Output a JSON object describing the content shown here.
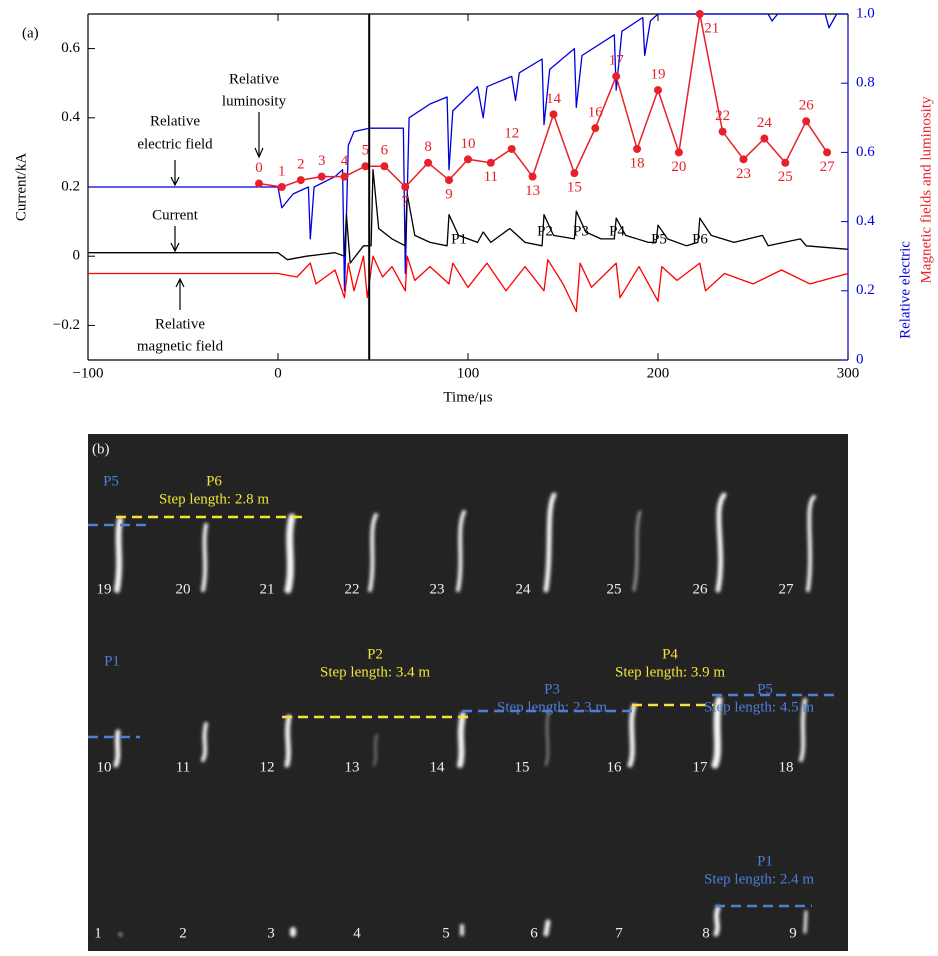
{
  "chart_data": {
    "type": "line",
    "panel_label": "(a)",
    "xlabel": "Time/μs",
    "ylabel": "Current/kA",
    "y2label": [
      "Relative electric",
      "Magnetic fields and luminosity"
    ],
    "xlim": [
      -100,
      300
    ],
    "xticks": [
      {
        "value": -100,
        "label": "−100"
      },
      0,
      100,
      200,
      300
    ],
    "ylim": [
      -0.3,
      0.7
    ],
    "yticks": [
      {
        "value": -0.2,
        "label": "−0.2"
      },
      0,
      0.2,
      0.4,
      0.6
    ],
    "y2lim": [
      0,
      1
    ],
    "y2ticks": [
      0,
      0.2,
      0.4,
      0.6,
      0.8,
      {
        "value": 1,
        "label": "1.0"
      }
    ],
    "y2color": "#0000e0",
    "vline": 48,
    "series": [
      {
        "color": "#0000e0",
        "axis": "y2",
        "x": [
          -100,
          -2,
          0,
          2,
          8,
          16,
          17,
          19,
          30,
          34,
          35,
          37,
          40,
          48,
          66,
          67,
          69,
          80,
          89,
          90,
          92,
          105,
          108,
          110,
          123,
          125,
          127,
          139,
          140,
          143,
          156,
          157,
          160,
          177,
          178,
          181,
          192,
          193,
          196,
          200,
          258,
          260,
          263,
          288,
          290,
          294,
          300
        ],
        "values": [
          0.5,
          0.5,
          0.5,
          0.44,
          0.48,
          0.5,
          0.35,
          0.5,
          0.53,
          0.55,
          0.2,
          0.62,
          0.66,
          0.67,
          0.67,
          0.25,
          0.7,
          0.74,
          0.76,
          0.55,
          0.72,
          0.79,
          0.7,
          0.79,
          0.82,
          0.75,
          0.83,
          0.87,
          0.68,
          0.84,
          0.9,
          0.73,
          0.88,
          0.94,
          0.78,
          0.95,
          0.99,
          0.88,
          0.98,
          1.0,
          1.0,
          0.98,
          1.0,
          1.0,
          0.96,
          1.0,
          1.0
        ]
      },
      {
        "color": "#000000",
        "x": [
          -100,
          -50,
          0,
          5,
          15,
          30,
          35,
          36,
          38,
          45,
          49,
          50,
          53,
          60,
          67,
          68,
          72,
          80,
          89,
          90,
          95,
          105,
          108,
          112,
          122,
          130,
          139,
          140,
          145,
          156,
          157,
          162,
          170,
          177,
          178,
          183,
          195,
          199,
          200,
          205,
          215,
          221,
          222,
          228,
          240,
          255,
          258,
          275,
          278,
          300
        ],
        "values": [
          0.01,
          0.01,
          0.01,
          -0.01,
          0.0,
          0.01,
          0.0,
          0.12,
          -0.02,
          0.03,
          0.03,
          0.25,
          0.08,
          0.05,
          0.03,
          0.18,
          0.06,
          0.04,
          0.03,
          0.12,
          0.06,
          0.04,
          0.07,
          0.04,
          0.08,
          0.04,
          0.03,
          0.12,
          0.06,
          0.05,
          0.13,
          0.07,
          0.05,
          0.05,
          0.11,
          0.06,
          0.04,
          0.04,
          0.09,
          0.05,
          0.03,
          0.04,
          0.11,
          0.06,
          0.04,
          0.06,
          0.03,
          0.05,
          0.03,
          0.02
        ]
      },
      {
        "color": "#ff0000",
        "x": [
          -100,
          -10,
          0,
          10,
          17,
          20,
          30,
          35,
          37,
          40,
          45,
          47,
          50,
          55,
          60,
          67,
          68,
          72,
          80,
          90,
          92,
          100,
          110,
          120,
          130,
          140,
          142,
          150,
          157,
          159,
          165,
          178,
          180,
          190,
          200,
          202,
          210,
          222,
          225,
          235,
          250,
          265,
          280,
          300
        ],
        "values": [
          -0.05,
          -0.05,
          -0.05,
          -0.06,
          -0.02,
          -0.08,
          -0.04,
          -0.12,
          -0.02,
          -0.1,
          0.0,
          -0.12,
          0.0,
          -0.06,
          -0.03,
          -0.1,
          0.0,
          -0.07,
          -0.03,
          -0.08,
          -0.02,
          -0.09,
          -0.02,
          -0.1,
          -0.03,
          -0.1,
          -0.01,
          -0.08,
          -0.16,
          -0.02,
          -0.09,
          -0.02,
          -0.12,
          -0.03,
          -0.13,
          -0.03,
          -0.07,
          -0.02,
          -0.1,
          -0.05,
          -0.08,
          -0.04,
          -0.08,
          -0.05
        ]
      },
      {
        "color": "#e8202a",
        "axis": "y2",
        "markers": true,
        "x": [
          -10,
          2,
          12,
          23,
          35,
          46,
          56,
          67,
          79,
          90,
          100,
          112,
          123,
          134,
          145,
          156,
          167,
          178,
          189,
          200,
          211,
          222,
          234,
          245,
          256,
          267,
          278,
          289
        ],
        "values": [
          0.51,
          0.5,
          0.52,
          0.53,
          0.53,
          0.56,
          0.56,
          0.5,
          0.57,
          0.52,
          0.58,
          0.57,
          0.61,
          0.53,
          0.71,
          0.54,
          0.67,
          0.82,
          0.61,
          0.78,
          0.6,
          1.0,
          0.66,
          0.58,
          0.64,
          0.57,
          0.69,
          0.6
        ],
        "point_labels": [
          "0",
          "1",
          "2",
          "3",
          "4",
          "5",
          "6",
          "7",
          "8",
          "9",
          "10",
          "11",
          "12",
          "13",
          "14",
          "15",
          "16",
          "17",
          "18",
          "19",
          "20",
          "21",
          "22",
          "23",
          "24",
          "25",
          "26",
          "27"
        ]
      }
    ],
    "annotations": [
      "Relative",
      "luminosity",
      "Relative",
      "electric field",
      "Current",
      "Relative",
      "magnetic field",
      "P1",
      "P2",
      "P3",
      "P4",
      "P5",
      "P6"
    ]
  },
  "panel_b": {
    "label": "(b)",
    "frame_labels": [
      "1",
      "2",
      "3",
      "4",
      "5",
      "6",
      "7",
      "8",
      "9",
      "10",
      "11",
      "12",
      "13",
      "14",
      "15",
      "16",
      "17",
      "18",
      "19",
      "20",
      "21",
      "22",
      "23",
      "24",
      "25",
      "26",
      "27"
    ],
    "annotations": [
      "P5",
      "P6",
      "Step length: 2.8 m",
      "P1",
      "P2",
      "Step length: 3.4 m",
      "P3",
      "Step length: 2.3 m",
      "P4",
      "Step length: 3.9 m",
      "P5",
      "Step length: 4.5 m",
      "P1",
      "Step length: 2.4 m"
    ]
  }
}
